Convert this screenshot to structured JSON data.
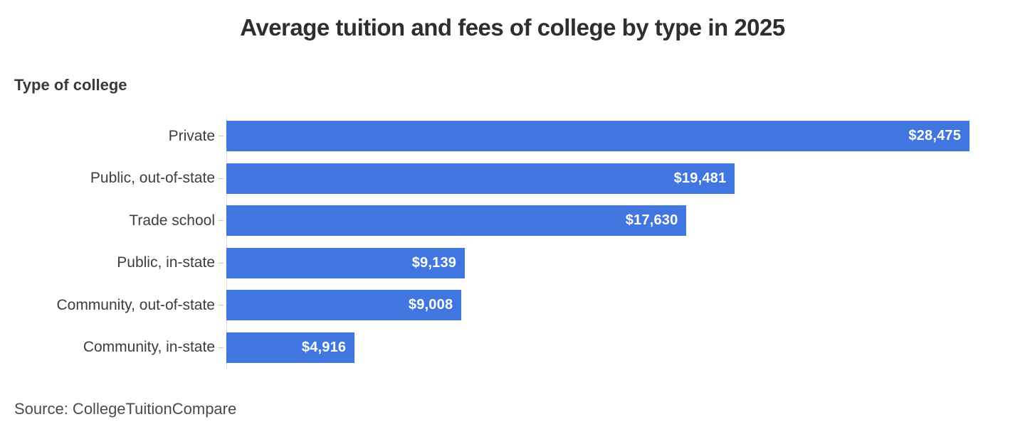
{
  "page": {
    "background_color": "#ffffff"
  },
  "chart_data": {
    "type": "bar",
    "orientation": "horizontal",
    "title": "Average tuition and fees of college by type in 2025",
    "axis_label": "Type of college",
    "categories": [
      "Private",
      "Public, out-of-state",
      "Trade school",
      "Public, in-state",
      "Community, out-of-state",
      "Community, in-state"
    ],
    "values": [
      28475,
      19481,
      17630,
      9139,
      9008,
      4916
    ],
    "value_labels": [
      "$28,475",
      "$19,481",
      "$17,630",
      "$9,139",
      "$9,008",
      "$4,916"
    ],
    "xlim": [
      0,
      30600
    ],
    "grid": false,
    "legend": false,
    "bar_color": "#4176e1",
    "value_text_color": "#ffffff",
    "axis_line_color": "#e2e2e2"
  },
  "source": {
    "text": "Source: CollegeTuitionCompare"
  }
}
